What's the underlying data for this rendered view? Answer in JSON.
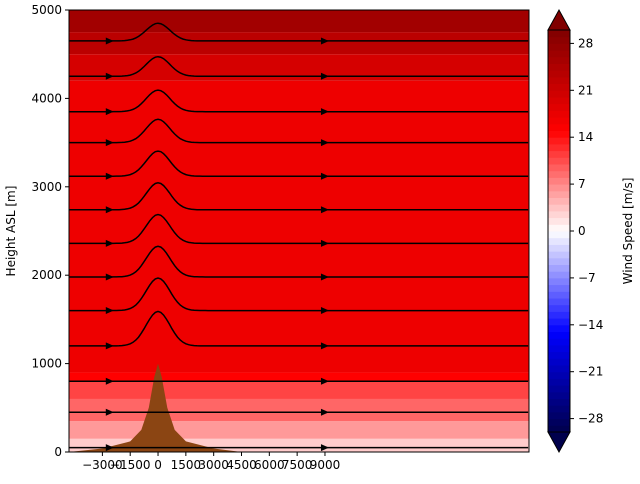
{
  "chart_data": {
    "type": "heatmap",
    "title": "",
    "xlabel": "",
    "ylabel": "Height ASL [m]",
    "colorbar_label": "Wind Speed [m/s]",
    "xlim": [
      -4800,
      20000
    ],
    "ylim": [
      0,
      5000
    ],
    "x_ticks": [
      -3000,
      -1500,
      0,
      1500,
      3000,
      4500,
      6000,
      7500,
      9000
    ],
    "x_tick_labels": [
      "−3000",
      "−1500",
      "0",
      "1500",
      "3000",
      "4500",
      "6000",
      "7500",
      "9000"
    ],
    "y_ticks": [
      0,
      1000,
      2000,
      3000,
      4000,
      5000
    ],
    "y_tick_labels": [
      "0",
      "1000",
      "2000",
      "3000",
      "4000",
      "5000"
    ],
    "colorbar_ticks": [
      -28,
      -21,
      -14,
      -7,
      0,
      7,
      14,
      21,
      28
    ],
    "colorbar_tick_labels": [
      "−28",
      "−21",
      "−14",
      "−7",
      "0",
      "7",
      "14",
      "21",
      "28"
    ],
    "colorbar_range": [
      -30,
      30
    ],
    "colormap": "seismic",
    "terrain_color": "#8b4513",
    "terrain": {
      "peak_x": 0,
      "peak_height": 1000,
      "profile": [
        {
          "x": -4800,
          "h": 0
        },
        {
          "x": -3000,
          "h": 40
        },
        {
          "x": -1500,
          "h": 120
        },
        {
          "x": -900,
          "h": 250
        },
        {
          "x": -500,
          "h": 500
        },
        {
          "x": -200,
          "h": 850
        },
        {
          "x": 0,
          "h": 1000
        },
        {
          "x": 200,
          "h": 850
        },
        {
          "x": 500,
          "h": 500
        },
        {
          "x": 900,
          "h": 250
        },
        {
          "x": 1500,
          "h": 120
        },
        {
          "x": 3000,
          "h": 40
        },
        {
          "x": 4500,
          "h": 0
        }
      ]
    },
    "wind_speed_layers": [
      {
        "z_bottom": 0,
        "z_top": 150,
        "speed": 3
      },
      {
        "z_bottom": 150,
        "z_top": 350,
        "speed": 6
      },
      {
        "z_bottom": 350,
        "z_top": 600,
        "speed": 9
      },
      {
        "z_bottom": 600,
        "z_top": 800,
        "speed": 11
      },
      {
        "z_bottom": 800,
        "z_top": 900,
        "speed": 15
      },
      {
        "z_bottom": 900,
        "z_top": 4200,
        "speed": 17
      },
      {
        "z_bottom": 4200,
        "z_top": 4500,
        "speed": 20
      },
      {
        "z_bottom": 4500,
        "z_top": 4750,
        "speed": 23
      },
      {
        "z_bottom": 4750,
        "z_top": 5000,
        "speed": 26
      }
    ],
    "streamline_heights": [
      50,
      450,
      800,
      1200,
      1600,
      1980,
      2360,
      2740,
      3120,
      3500,
      3850,
      4250,
      4650
    ]
  }
}
